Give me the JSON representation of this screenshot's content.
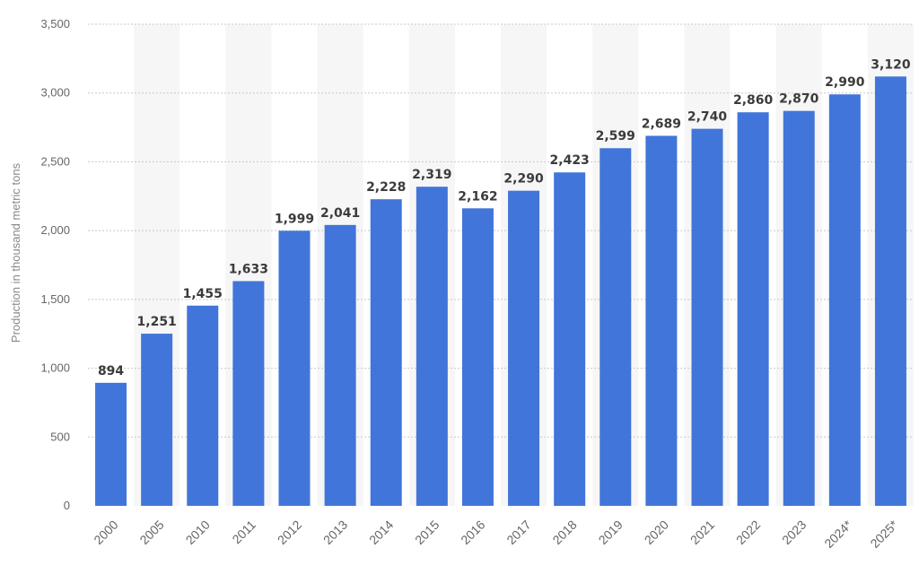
{
  "chart_data": {
    "type": "bar",
    "title": "",
    "xlabel": "",
    "ylabel": "Production in thousand metric tons",
    "categories": [
      "2000",
      "2005",
      "2010",
      "2011",
      "2012",
      "2013",
      "2014",
      "2015",
      "2016",
      "2017",
      "2018",
      "2019",
      "2020",
      "2021",
      "2022",
      "2023",
      "2024*",
      "2025*"
    ],
    "values": [
      894,
      1251,
      1455,
      1633,
      1999,
      2041,
      2228,
      2319,
      2162,
      2290,
      2423,
      2599,
      2689,
      2740,
      2860,
      2870,
      2990,
      3120
    ],
    "data_labels": [
      "894",
      "1,251",
      "1,455",
      "1,633",
      "1,999",
      "2,041",
      "2,228",
      "2,319",
      "2,162",
      "2,290",
      "2,423",
      "2,599",
      "2,689",
      "2,740",
      "2,860",
      "2,870",
      "2,990",
      "3,120"
    ],
    "ylim": [
      0,
      3500
    ],
    "yticks": [
      0,
      500,
      1000,
      1500,
      2000,
      2500,
      3000,
      3500
    ],
    "ytick_labels": [
      "0",
      "500",
      "1,000",
      "1,500",
      "2,000",
      "2,500",
      "3,000",
      "3,500"
    ],
    "grid": true,
    "colors": {
      "bar": "#4175d9",
      "band": "#f6f6f6",
      "grid": "#c8c8c8"
    }
  }
}
